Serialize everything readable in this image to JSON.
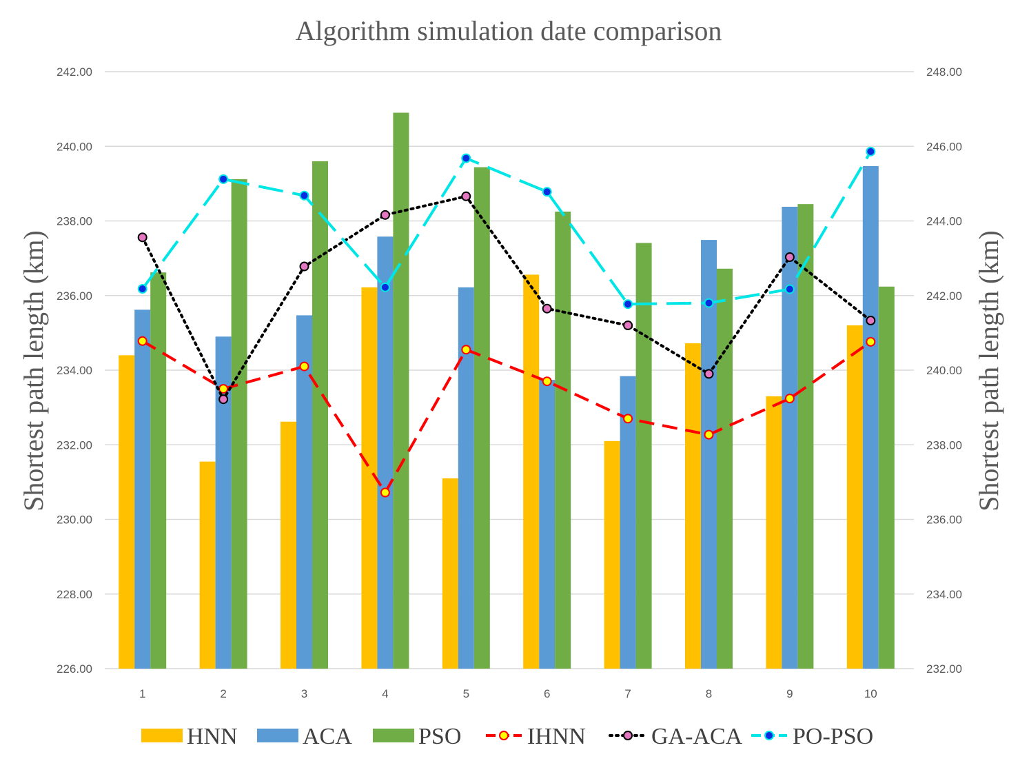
{
  "chart_data": {
    "type": "bar",
    "title": "Algorithm simulation date comparison",
    "xlabel": "",
    "ylabel": "Shortest path length (km)",
    "ylabel_right": "Shortest path length (km)",
    "categories": [
      "1",
      "2",
      "3",
      "4",
      "5",
      "6",
      "7",
      "8",
      "9",
      "10"
    ],
    "ylim": [
      226,
      242
    ],
    "ylim_right": [
      232,
      248
    ],
    "yticks": [
      "226.00",
      "228.00",
      "230.00",
      "232.00",
      "234.00",
      "236.00",
      "238.00",
      "240.00",
      "242.00"
    ],
    "yticks_right": [
      "232.00",
      "234.00",
      "236.00",
      "238.00",
      "240.00",
      "242.00",
      "244.00",
      "246.00",
      "248.00"
    ],
    "grid": true,
    "legend_position": "bottom",
    "bar_series": [
      {
        "name": "HNN",
        "color": "#FFC000",
        "values": [
          234.4,
          231.55,
          232.62,
          236.22,
          231.1,
          236.56,
          232.1,
          234.72,
          233.3,
          235.2
        ]
      },
      {
        "name": "ACA",
        "color": "#5B9BD5",
        "values": [
          235.62,
          234.9,
          235.47,
          237.58,
          236.22,
          233.74,
          233.84,
          237.49,
          238.38,
          239.47
        ]
      },
      {
        "name": "PSO",
        "color": "#70AD47",
        "values": [
          236.62,
          239.12,
          239.6,
          240.9,
          239.44,
          238.25,
          237.41,
          236.72,
          238.45,
          236.24
        ]
      }
    ],
    "line_series": [
      {
        "name": "IHNN",
        "axis": "right",
        "color": "#FF0000",
        "marker_color": "#FFFF00",
        "dash": "long-dash",
        "values": [
          240.78,
          239.5,
          240.1,
          236.72,
          240.55,
          239.7,
          238.7,
          238.27,
          239.24,
          240.76
        ]
      },
      {
        "name": "GA-ACA",
        "axis": "right",
        "color": "#000000",
        "marker_color": "#E377C2",
        "dash": "dot",
        "values": [
          243.56,
          239.22,
          242.78,
          244.16,
          244.66,
          241.65,
          241.2,
          239.9,
          243.03,
          241.33
        ]
      },
      {
        "name": "PO-PSO",
        "axis": "right",
        "color": "#00E5E5",
        "marker_color": "#0A2BE0",
        "dash": "dash",
        "values": [
          242.18,
          245.12,
          244.68,
          242.22,
          245.68,
          244.78,
          241.77,
          241.8,
          242.17,
          245.86
        ]
      }
    ]
  }
}
